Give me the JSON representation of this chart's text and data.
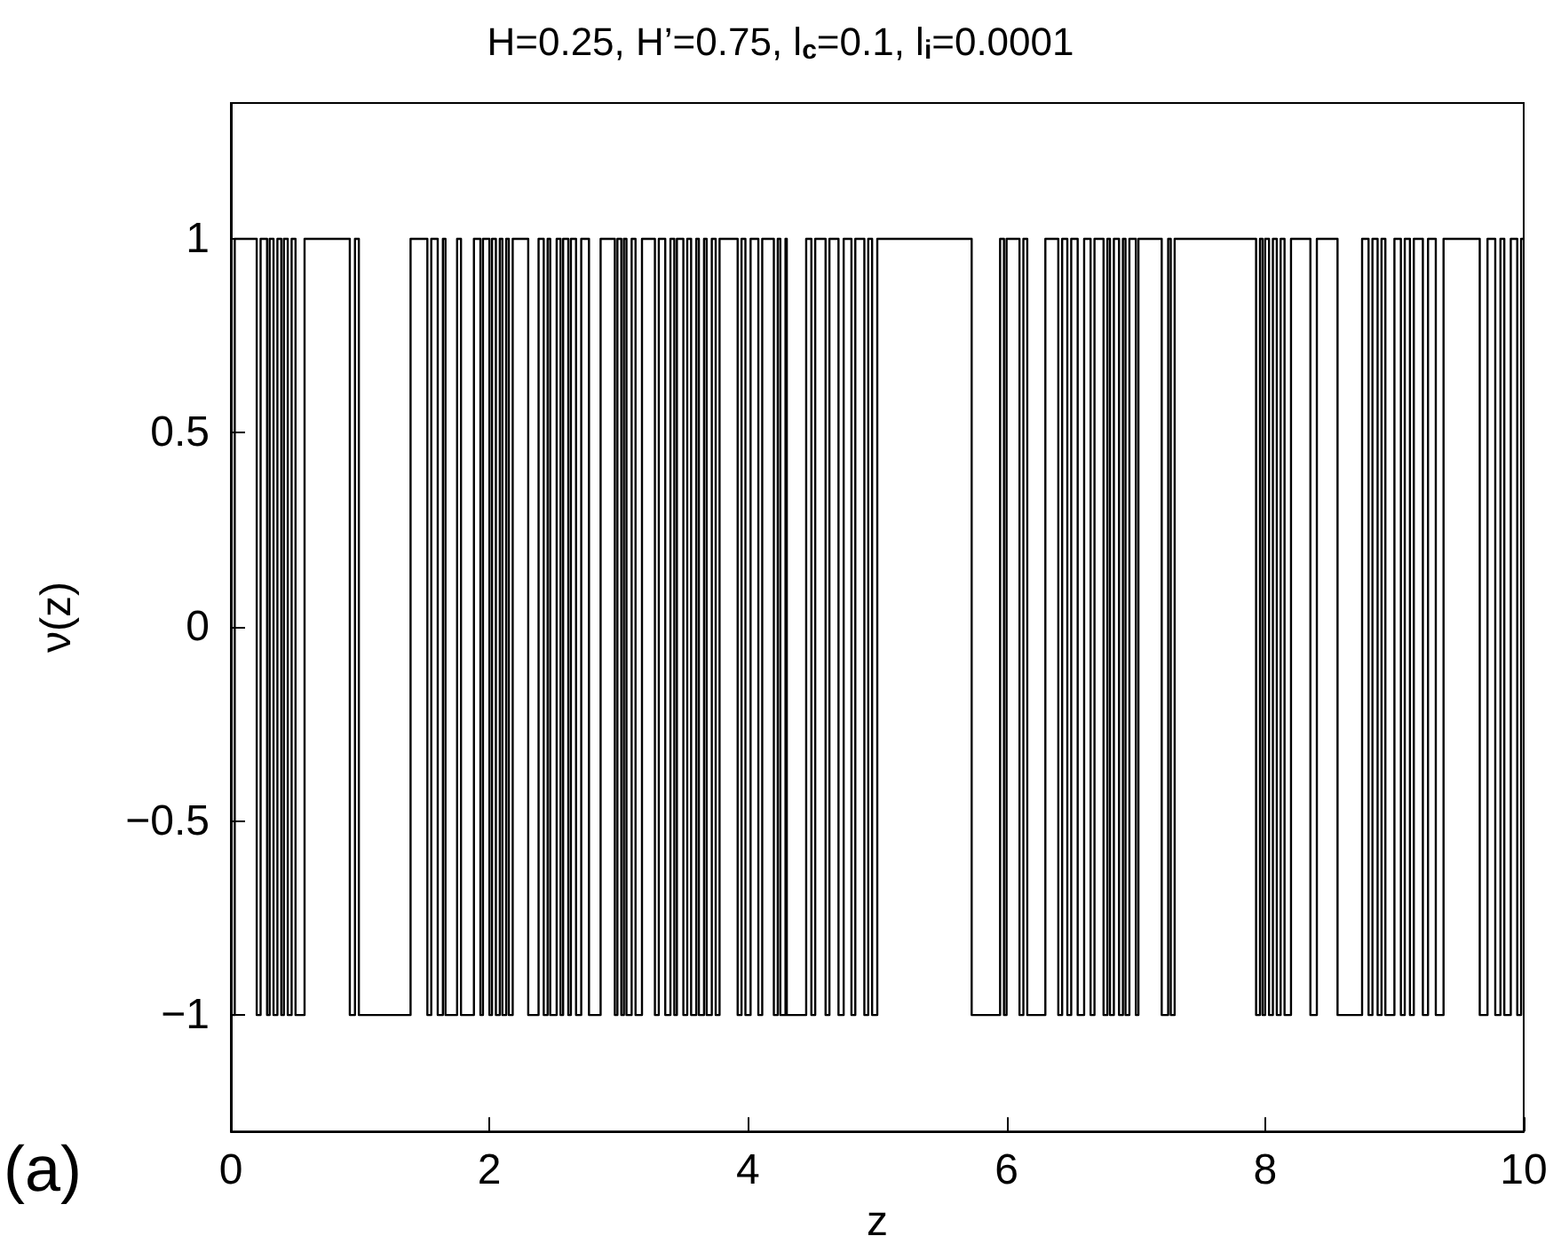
{
  "chart_data": {
    "type": "step",
    "title": "H=0.25, H’=0.75, l$_{c}$=0.1, l$_{i}$=0.0001",
    "xlabel": "z",
    "ylabel": "ν(z)",
    "annotations": [
      "(a)"
    ],
    "xlim": [
      0,
      10
    ],
    "xticks": [
      0,
      2,
      4,
      6,
      8,
      10
    ],
    "ylim": [
      -1.3,
      1.35
    ],
    "yticks": [
      -1,
      -0.5,
      0,
      0.5,
      1
    ],
    "marker": "none",
    "line_style": "solid",
    "grid": false,
    "series": [
      {
        "color": "#000000",
        "x": [
          0,
          0.03,
          0.2,
          0.23,
          0.28,
          0.3,
          0.33,
          0.36,
          0.39,
          0.41,
          0.44,
          0.47,
          0.5,
          0.57,
          0.92,
          0.96,
          0.99,
          1.39,
          1.52,
          1.55,
          1.6,
          1.64,
          1.66,
          1.75,
          1.78,
          1.88,
          1.93,
          1.95,
          2.0,
          2.02,
          2.05,
          2.08,
          2.1,
          2.13,
          2.15,
          2.18,
          2.3,
          2.38,
          2.42,
          2.45,
          2.47,
          2.52,
          2.55,
          2.57,
          2.61,
          2.63,
          2.67,
          2.71,
          2.77,
          2.86,
          2.97,
          2.99,
          3.02,
          3.04,
          3.06,
          3.1,
          3.13,
          3.18,
          3.28,
          3.31,
          3.36,
          3.4,
          3.43,
          3.45,
          3.5,
          3.53,
          3.56,
          3.6,
          3.62,
          3.66,
          3.68,
          3.72,
          3.75,
          3.78,
          3.92,
          3.95,
          3.98,
          4.02,
          4.08,
          4.11,
          4.2,
          4.23,
          4.25,
          4.29,
          4.3,
          4.45,
          4.49,
          4.52,
          4.6,
          4.63,
          4.7,
          4.74,
          4.8,
          4.83,
          4.9,
          4.93,
          4.96,
          5.0,
          5.73,
          5.95,
          5.98,
          6.0,
          6.1,
          6.13,
          6.16,
          6.3,
          6.4,
          6.43,
          6.47,
          6.5,
          6.55,
          6.6,
          6.65,
          6.68,
          6.75,
          6.78,
          6.8,
          6.83,
          6.87,
          6.9,
          6.92,
          6.95,
          7.0,
          7.02,
          7.2,
          7.25,
          7.27,
          7.3,
          7.93,
          7.96,
          7.98,
          8.0,
          8.03,
          8.06,
          8.09,
          8.12,
          8.15,
          8.2,
          8.35,
          8.4,
          8.56,
          8.75,
          8.8,
          8.83,
          8.87,
          8.9,
          8.93,
          9.0,
          9.05,
          9.08,
          9.12,
          9.15,
          9.22,
          9.26,
          9.32,
          9.38,
          9.66,
          9.72,
          9.78,
          9.82,
          9.85,
          9.9,
          9.95,
          9.98,
          10
        ],
        "values": [
          -1,
          1,
          -1,
          1,
          -1,
          1,
          -1,
          1,
          -1,
          1,
          -1,
          1,
          -1,
          1,
          -1,
          1,
          -1,
          1,
          -1,
          1,
          -1,
          1,
          -1,
          1,
          -1,
          1,
          -1,
          1,
          -1,
          1,
          -1,
          1,
          -1,
          1,
          -1,
          1,
          -1,
          1,
          -1,
          1,
          -1,
          1,
          -1,
          1,
          -1,
          1,
          -1,
          1,
          -1,
          1,
          -1,
          1,
          -1,
          1,
          -1,
          1,
          -1,
          1,
          -1,
          1,
          -1,
          1,
          -1,
          1,
          -1,
          1,
          -1,
          1,
          -1,
          1,
          -1,
          1,
          -1,
          1,
          -1,
          1,
          -1,
          1,
          -1,
          1,
          -1,
          1,
          -1,
          1,
          -1,
          1,
          -1,
          1,
          -1,
          1,
          -1,
          1,
          -1,
          1,
          -1,
          1,
          -1,
          1,
          -1,
          1,
          -1,
          1,
          -1,
          1,
          -1,
          1,
          -1,
          1,
          -1,
          1,
          -1,
          1,
          -1,
          1,
          -1,
          1,
          -1,
          1,
          -1,
          1,
          -1,
          1,
          -1,
          1,
          -1,
          1,
          -1,
          1,
          -1,
          1,
          -1,
          1,
          -1,
          1,
          -1,
          1,
          -1,
          1,
          -1,
          1,
          -1,
          1,
          -1,
          1,
          -1,
          1,
          -1,
          1,
          -1,
          1,
          -1,
          1,
          -1,
          1,
          -1,
          1,
          -1,
          1,
          -1,
          1,
          -1,
          1,
          -1,
          1,
          1
        ]
      }
    ]
  }
}
